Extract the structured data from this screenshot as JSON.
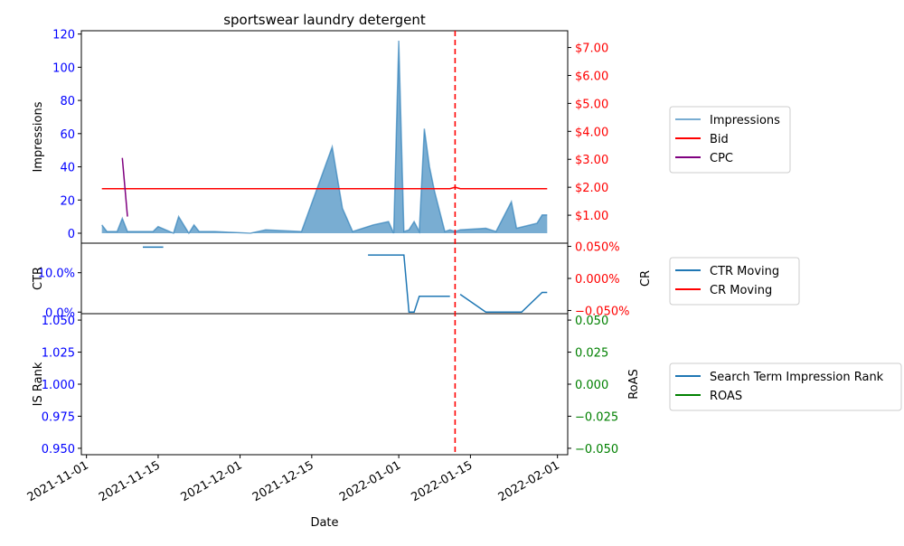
{
  "chart_data": {
    "title": "sportswear laundry detergent",
    "xlabel": "Date",
    "x_ticks": [
      "2021-11-01",
      "2021-11-15",
      "2021-12-01",
      "2021-12-15",
      "2022-01-01",
      "2022-01-15",
      "2022-02-01"
    ],
    "x_range": [
      "2021-10-31",
      "2022-02-03"
    ],
    "marker_date": "2022-01-12",
    "colors": {
      "impressions": "#1f77b4",
      "bid": "#ff0000",
      "cpc": "#800080",
      "ctr": "#1f77b4",
      "cr": "#ff0000",
      "is_rank": "#1f77b4",
      "roas": "#008000",
      "marker": "#ff0000"
    },
    "panels": [
      {
        "type": "area",
        "ylabel_left": "Impressions",
        "yticks_left": [
          "0",
          "20",
          "40",
          "60",
          "80",
          "100",
          "120"
        ],
        "ylim_left": [
          -6,
          122
        ],
        "ylabel_right": "",
        "yticks_right": [
          "$1.00",
          "$2.00",
          "$3.00",
          "$4.00",
          "$5.00",
          "$6.00",
          "$7.00"
        ],
        "ylim_right": [
          0,
          7.6
        ],
        "series": [
          {
            "name": "Impressions",
            "axis": "left",
            "kind": "area",
            "x": [
              "2021-11-04",
              "2021-11-05",
              "2021-11-06",
              "2021-11-07",
              "2021-11-08",
              "2021-11-09",
              "2021-11-14",
              "2021-11-15",
              "2021-11-18",
              "2021-11-19",
              "2021-11-21",
              "2021-11-22",
              "2021-11-23",
              "2021-11-26",
              "2021-12-03",
              "2021-12-06",
              "2021-12-13",
              "2021-12-19",
              "2021-12-21",
              "2021-12-23",
              "2021-12-27",
              "2021-12-30",
              "2021-12-31",
              "2022-01-01",
              "2022-01-02",
              "2022-01-03",
              "2022-01-04",
              "2022-01-05",
              "2022-01-06",
              "2022-01-07",
              "2022-01-08",
              "2022-01-10",
              "2022-01-11",
              "2022-01-12",
              "2022-01-13",
              "2022-01-18",
              "2022-01-20",
              "2022-01-23",
              "2022-01-24",
              "2022-01-28",
              "2022-01-29",
              "2022-01-30"
            ],
            "values": [
              5,
              1,
              1,
              1,
              9,
              1,
              1,
              4,
              0,
              10,
              0,
              5,
              1,
              1,
              0,
              2,
              1,
              52,
              15,
              1,
              5,
              7,
              0,
              116,
              1,
              2,
              7,
              1,
              63,
              40,
              25,
              1,
              2,
              1,
              2,
              3,
              1,
              19,
              3,
              6,
              11,
              11
            ]
          },
          {
            "name": "Bid",
            "axis": "right",
            "kind": "line",
            "x": [
              "2021-11-04",
              "2022-01-11",
              "2022-01-12",
              "2022-01-13",
              "2022-01-30"
            ],
            "values": [
              1.95,
              1.95,
              2.0,
              1.95,
              1.95
            ]
          },
          {
            "name": "CPC",
            "axis": "right",
            "kind": "line",
            "x": [
              "2021-11-08",
              "2021-11-09"
            ],
            "values": [
              3.05,
              0.95
            ]
          }
        ]
      },
      {
        "type": "line",
        "ylabel_left": "CTR",
        "yticks_left": [
          "0.0%",
          "10.0%"
        ],
        "ylim_left": [
          -0.4,
          17.5
        ],
        "ylabel_right": "CR",
        "yticks_right": [
          "−0.050%",
          "0.000%",
          "0.050%"
        ],
        "ylim_right": [
          -0.055,
          0.055
        ],
        "series": [
          {
            "name": "CTR Moving",
            "axis": "left",
            "kind": "line",
            "segments": [
              {
                "x": [
                  "2021-11-12",
                  "2021-11-16"
                ],
                "values": [
                  16.5,
                  16.5
                ]
              },
              {
                "x": [
                  "2021-12-26",
                  "2022-01-02",
                  "2022-01-03",
                  "2022-01-04",
                  "2022-01-05",
                  "2022-01-06",
                  "2022-01-11"
                ],
                "values": [
                  14.5,
                  14.5,
                  0,
                  0,
                  4,
                  4,
                  4
                ]
              },
              {
                "x": [
                  "2022-01-13",
                  "2022-01-18",
                  "2022-01-25",
                  "2022-01-29",
                  "2022-01-30"
                ],
                "values": [
                  4.5,
                  0,
                  0,
                  5,
                  5
                ]
              }
            ]
          },
          {
            "name": "CR Moving",
            "axis": "right",
            "kind": "line",
            "segments": []
          }
        ]
      },
      {
        "type": "line",
        "ylabel_left": "IS Rank",
        "yticks_left": [
          "0.950",
          "0.975",
          "1.000",
          "1.025",
          "1.050"
        ],
        "ylim_left": [
          0.945,
          1.055
        ],
        "ylabel_right": "RoAS",
        "yticks_right": [
          "−0.050",
          "−0.025",
          "0.000",
          "0.025",
          "0.050"
        ],
        "ylim_right": [
          -0.055,
          0.055
        ],
        "series": [
          {
            "name": "Search Term Impression Rank",
            "axis": "left",
            "kind": "line",
            "segments": []
          },
          {
            "name": "ROAS",
            "axis": "right",
            "kind": "line",
            "segments": []
          }
        ]
      }
    ],
    "legends": [
      {
        "placement": "right",
        "entries": [
          "Impressions",
          "Bid",
          "CPC"
        ]
      },
      {
        "placement": "right",
        "entries": [
          "CTR Moving",
          "CR Moving"
        ]
      },
      {
        "placement": "right",
        "entries": [
          "Search Term Impression Rank",
          "ROAS"
        ]
      }
    ]
  }
}
